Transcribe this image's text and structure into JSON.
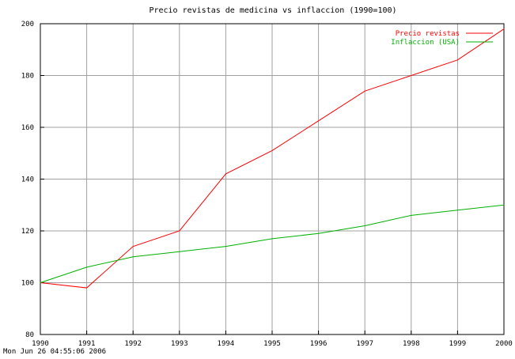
{
  "chart_data": {
    "type": "line",
    "title": "Precio revistas de medicina vs inflaccion (1990=100)",
    "xlabel": "",
    "ylabel": "",
    "x": [
      1990,
      1991,
      1992,
      1993,
      1994,
      1995,
      1996,
      1997,
      1998,
      1999,
      2000
    ],
    "xlim": [
      1990,
      2000
    ],
    "ylim": [
      80,
      200
    ],
    "yticks": [
      80,
      100,
      120,
      140,
      160,
      180,
      200
    ],
    "grid": true,
    "legend_position": "top-right",
    "series": [
      {
        "name": "Precio revistas",
        "color": "#ff0000",
        "values": [
          100,
          98,
          114,
          120,
          142,
          151,
          162.5,
          174,
          180,
          186,
          198
        ]
      },
      {
        "name": "Inflaccion (USA)",
        "color": "#00b000",
        "values": [
          100,
          106,
          110,
          112,
          114,
          117,
          119,
          122,
          126,
          128,
          130
        ]
      }
    ]
  },
  "timestamp": "Mon Jun 26 04:55:06 2006"
}
